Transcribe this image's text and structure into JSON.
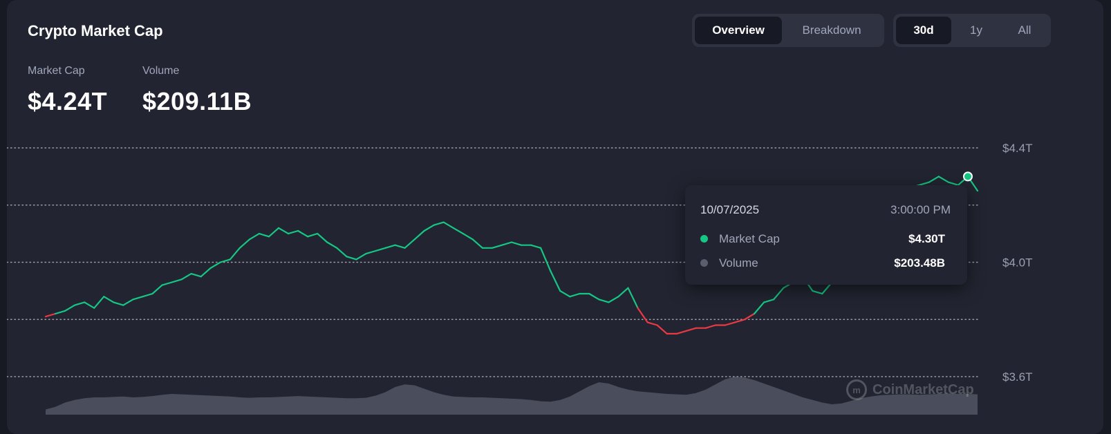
{
  "header": {
    "title": "Crypto Market Cap",
    "view_tabs": [
      "Overview",
      "Breakdown"
    ],
    "range_tabs": [
      "30d",
      "1y",
      "All"
    ],
    "active_view": "Overview",
    "active_range": "30d"
  },
  "stats": {
    "market_cap_label": "Market Cap",
    "market_cap_value": "$4.24T",
    "volume_label": "Volume",
    "volume_value": "$209.11B"
  },
  "tooltip": {
    "date": "10/07/2025",
    "time": "3:00:00 PM",
    "market_cap_label": "Market Cap",
    "market_cap_value": "$4.30T",
    "volume_label": "Volume",
    "volume_value": "$203.48B"
  },
  "watermark": "CoinMarketCap",
  "colors": {
    "up": "#16c784",
    "down": "#ea3943",
    "volume_fill": "#6b6f7d",
    "grid": "#c3c6d0",
    "axis_text": "#9aa0b1",
    "volume_dot": "#5b5f6d"
  },
  "chart_data": {
    "type": "line",
    "ytick_labels": [
      "$4.4T",
      "$4.0T",
      "$3.6T"
    ],
    "ylim": [
      3.6,
      4.4
    ],
    "baseline": 3.82,
    "grid": true,
    "series": [
      {
        "name": "Market Cap",
        "unit": "T",
        "values": [
          3.81,
          3.82,
          3.83,
          3.85,
          3.86,
          3.84,
          3.88,
          3.86,
          3.85,
          3.87,
          3.88,
          3.89,
          3.92,
          3.93,
          3.94,
          3.96,
          3.95,
          3.98,
          4.0,
          4.01,
          4.05,
          4.08,
          4.1,
          4.09,
          4.12,
          4.1,
          4.11,
          4.09,
          4.1,
          4.07,
          4.05,
          4.02,
          4.01,
          4.03,
          4.04,
          4.05,
          4.06,
          4.05,
          4.08,
          4.11,
          4.13,
          4.14,
          4.12,
          4.1,
          4.08,
          4.05,
          4.05,
          4.06,
          4.07,
          4.06,
          4.06,
          4.05,
          3.97,
          3.9,
          3.88,
          3.89,
          3.89,
          3.87,
          3.86,
          3.88,
          3.91,
          3.84,
          3.79,
          3.78,
          3.75,
          3.75,
          3.76,
          3.77,
          3.77,
          3.78,
          3.78,
          3.79,
          3.8,
          3.82,
          3.86,
          3.87,
          3.91,
          3.93,
          3.95,
          3.9,
          3.89,
          3.93,
          3.95,
          4.1,
          4.12,
          4.18,
          4.23,
          4.25,
          4.25,
          4.26,
          4.27,
          4.28,
          4.3,
          4.28,
          4.27,
          4.3,
          4.25
        ]
      },
      {
        "name": "Volume",
        "unit": "B",
        "values": [
          12,
          18,
          28,
          34,
          38,
          40,
          40,
          41,
          42,
          40,
          41,
          43,
          46,
          48,
          47,
          46,
          45,
          44,
          43,
          42,
          40,
          39,
          40,
          40,
          41,
          42,
          43,
          42,
          41,
          40,
          39,
          38,
          38,
          39,
          44,
          52,
          64,
          70,
          68,
          60,
          52,
          46,
          42,
          41,
          40,
          40,
          39,
          38,
          37,
          36,
          34,
          31,
          30,
          34,
          42,
          54,
          66,
          75,
          72,
          64,
          58,
          54,
          52,
          50,
          48,
          47,
          46,
          50,
          58,
          70,
          82,
          88,
          86,
          80,
          72,
          64,
          56,
          48,
          40,
          34,
          28,
          24,
          26,
          32,
          38,
          42,
          45,
          46,
          47,
          47,
          46,
          47,
          48,
          49,
          48,
          48,
          47
        ]
      }
    ]
  }
}
